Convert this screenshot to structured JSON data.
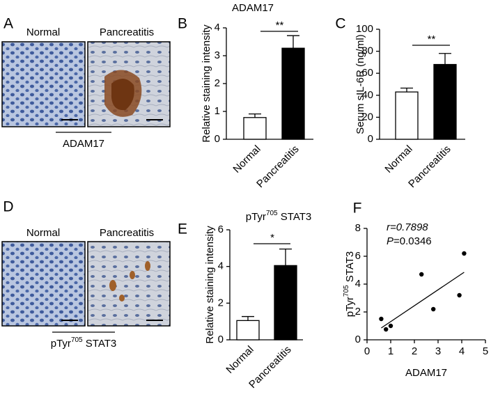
{
  "panels": [
    {
      "letter": "A",
      "labels": [
        "Normal",
        "Pancreatitis"
      ],
      "caption": "ADAM17"
    },
    {
      "letter": "D",
      "labels": [
        "Normal",
        "Pancreatitis"
      ],
      "caption": [
        "pTyr",
        "705",
        " STAT3"
      ]
    }
  ],
  "chart_data": [
    {
      "letter": "B",
      "type": "bar",
      "title": "ADAM17",
      "ylabel": "Relative staining intensity",
      "categories": [
        "Normal",
        "Pancreatitis"
      ],
      "values": [
        0.78,
        3.27
      ],
      "errors": [
        0.13,
        0.45
      ],
      "colors": [
        "#ffffff",
        "#000000"
      ],
      "ylim": [
        0,
        4
      ],
      "yticks": [
        0,
        1,
        2,
        3,
        4
      ],
      "significance": "**"
    },
    {
      "letter": "C",
      "type": "bar",
      "ylabel": "Serum sIL-6R (ng/ml)",
      "categories": [
        "Normal",
        "Pancreatitis"
      ],
      "values": [
        43,
        68
      ],
      "errors": [
        3.5,
        10
      ],
      "colors": [
        "#ffffff",
        "#000000"
      ],
      "ylim": [
        0,
        100
      ],
      "yticks": [
        0,
        20,
        40,
        60,
        80,
        100
      ],
      "significance": "**"
    },
    {
      "letter": "E",
      "type": "bar",
      "title": [
        "pTyr",
        "705",
        " STAT3"
      ],
      "ylabel": "Relative staining intensity",
      "categories": [
        "Normal",
        "Pancreatitis"
      ],
      "values": [
        1.05,
        4.05
      ],
      "errors": [
        0.22,
        0.9
      ],
      "colors": [
        "#ffffff",
        "#000000"
      ],
      "ylim": [
        0,
        6
      ],
      "yticks": [
        0,
        2,
        4,
        6
      ],
      "significance": "*"
    },
    {
      "letter": "F",
      "type": "scatter",
      "xlabel": "ADAM17",
      "ylabel": [
        "pTyr",
        "705",
        " STAT3"
      ],
      "annotations": [
        [
          "r=0.7898"
        ],
        [
          "P",
          "=0.0346"
        ]
      ],
      "x": [
        0.6,
        0.8,
        1.0,
        2.3,
        2.8,
        3.9,
        4.1
      ],
      "y": [
        1.5,
        0.75,
        1.0,
        4.7,
        2.2,
        3.2,
        6.2
      ],
      "fit_line": {
        "x": [
          0.6,
          4.1
        ],
        "y": [
          0.85,
          4.85
        ]
      },
      "color": "#000000",
      "xlim": [
        0,
        5
      ],
      "xticks": [
        0,
        1,
        2,
        3,
        4,
        5
      ],
      "ylim": [
        0,
        8
      ],
      "yticks": [
        0,
        2,
        4,
        6,
        8
      ]
    }
  ]
}
